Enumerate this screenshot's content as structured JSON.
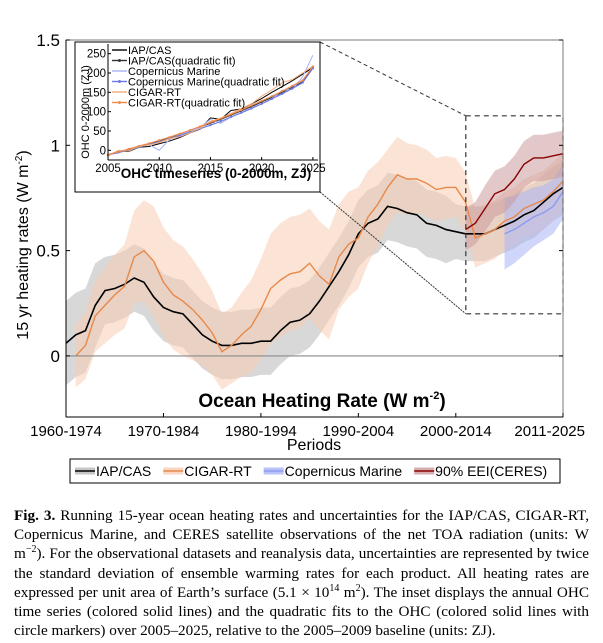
{
  "chart_data": [
    {
      "type": "line",
      "title": "Ocean Heating Rate (W m^-2)",
      "title_main": "Ocean Heating Rate (W m",
      "title_sup": "-2",
      "title_close": ")",
      "xlabel": "Periods",
      "ylabel_main": "15 yr heating rates (W m",
      "ylabel_sup": "-2",
      "ylabel_close": ")",
      "ylim": [
        -0.29,
        1.5
      ],
      "xlim": [
        1960,
        2011
      ],
      "yticks": [
        0,
        0.5,
        1,
        1.5
      ],
      "ytick_labels": [
        "0",
        "0.5",
        "1",
        "1.5"
      ],
      "xticks": [
        1960,
        1970,
        1980,
        1990,
        2000,
        2011
      ],
      "xtick_labels": [
        "1960-1974",
        "1970-1984",
        "1980-1994",
        "1990-2004",
        "2000-2014",
        "2011-2025"
      ],
      "zero_line": true,
      "legend_position": "bottom",
      "legend": [
        "IAP/CAS",
        "CIGAR-RT",
        "Copernicus Marine",
        "90% EEI(CERES)"
      ],
      "zoom_box": {
        "x_range": [
          2000,
          2011
        ],
        "y_range": [
          0.2,
          1.14
        ]
      },
      "series": [
        {
          "name": "IAP/CAS",
          "color": "#000000",
          "band_color": "#b8b8b8",
          "x": [
            1960,
            1961,
            1962,
            1963,
            1964,
            1965,
            1966,
            1967,
            1968,
            1969,
            1970,
            1971,
            1972,
            1973,
            1974,
            1975,
            1976,
            1977,
            1978,
            1979,
            1980,
            1981,
            1982,
            1983,
            1984,
            1985,
            1986,
            1987,
            1988,
            1989,
            1990,
            1991,
            1992,
            1993,
            1994,
            1995,
            1996,
            1997,
            1998,
            1999,
            2000,
            2001,
            2002,
            2003,
            2004,
            2005,
            2006,
            2007,
            2008,
            2009,
            2010,
            2011
          ],
          "y": [
            0.06,
            0.1,
            0.12,
            0.24,
            0.31,
            0.32,
            0.34,
            0.37,
            0.35,
            0.28,
            0.23,
            0.21,
            0.2,
            0.15,
            0.1,
            0.07,
            0.05,
            0.05,
            0.06,
            0.06,
            0.07,
            0.07,
            0.12,
            0.16,
            0.17,
            0.2,
            0.26,
            0.33,
            0.4,
            0.48,
            0.58,
            0.63,
            0.65,
            0.71,
            0.7,
            0.68,
            0.67,
            0.63,
            0.62,
            0.6,
            0.59,
            0.58,
            0.58,
            0.58,
            0.6,
            0.62,
            0.64,
            0.67,
            0.69,
            0.73,
            0.77,
            0.8
          ],
          "band": [
            0.2,
            0.2,
            0.2,
            0.2,
            0.16,
            0.16,
            0.16,
            0.16,
            0.16,
            0.16,
            0.16,
            0.16,
            0.16,
            0.16,
            0.16,
            0.16,
            0.16,
            0.16,
            0.16,
            0.16,
            0.16,
            0.16,
            0.16,
            0.16,
            0.16,
            0.16,
            0.16,
            0.16,
            0.16,
            0.16,
            0.16,
            0.16,
            0.16,
            0.16,
            0.16,
            0.16,
            0.16,
            0.16,
            0.16,
            0.16,
            0.13,
            0.13,
            0.13,
            0.13,
            0.13,
            0.13,
            0.13,
            0.13,
            0.13,
            0.13,
            0.13,
            0.13
          ]
        },
        {
          "name": "CIGAR-RT",
          "color": "#e8884a",
          "band_color": "#f7cdb5",
          "x": [
            1961,
            1962,
            1963,
            1964,
            1965,
            1966,
            1967,
            1968,
            1969,
            1970,
            1971,
            1972,
            1973,
            1974,
            1975,
            1976,
            1977,
            1978,
            1979,
            1980,
            1981,
            1982,
            1983,
            1984,
            1985,
            1986,
            1987,
            1988,
            1989,
            1990,
            1991,
            1992,
            1993,
            1994,
            1995,
            1996,
            1997,
            1998,
            1999,
            2000,
            2001,
            2002,
            2003,
            2004,
            2005,
            2006,
            2007,
            2008,
            2009,
            2010,
            2011
          ],
          "y": [
            0.0,
            0.05,
            0.19,
            0.24,
            0.29,
            0.33,
            0.47,
            0.5,
            0.45,
            0.35,
            0.29,
            0.26,
            0.22,
            0.17,
            0.11,
            0.02,
            0.05,
            0.1,
            0.14,
            0.22,
            0.32,
            0.36,
            0.39,
            0.4,
            0.44,
            0.38,
            0.34,
            0.47,
            0.53,
            0.56,
            0.66,
            0.72,
            0.8,
            0.86,
            0.84,
            0.84,
            0.82,
            0.79,
            0.8,
            0.8,
            0.73,
            0.56,
            0.58,
            0.6,
            0.64,
            0.66,
            0.7,
            0.72,
            0.74,
            0.78,
            0.83
          ],
          "band": [
            0.15,
            0.16,
            0.17,
            0.18,
            0.19,
            0.2,
            0.22,
            0.24,
            0.26,
            0.26,
            0.26,
            0.26,
            0.24,
            0.22,
            0.2,
            0.18,
            0.18,
            0.2,
            0.22,
            0.24,
            0.26,
            0.27,
            0.27,
            0.27,
            0.26,
            0.26,
            0.26,
            0.25,
            0.25,
            0.24,
            0.22,
            0.2,
            0.18,
            0.18,
            0.17,
            0.16,
            0.16,
            0.15,
            0.15,
            0.14,
            0.14,
            0.14,
            0.14,
            0.14,
            0.14,
            0.14,
            0.14,
            0.14,
            0.14,
            0.14,
            0.14
          ]
        },
        {
          "name": "Copernicus Marine",
          "color": "#8c9cf2",
          "band_color": "#a9b4f5",
          "x": [
            2005,
            2006,
            2007,
            2008,
            2009,
            2010,
            2011
          ],
          "y": [
            0.58,
            0.6,
            0.63,
            0.66,
            0.68,
            0.71,
            0.78
          ],
          "band": [
            0.17,
            0.16,
            0.15,
            0.14,
            0.13,
            0.13,
            0.13
          ]
        },
        {
          "name": "90% EEI(CERES)",
          "color": "#8b0000",
          "band_color": "#cc9a9e",
          "x": [
            2001,
            2002,
            2003,
            2004,
            2005,
            2006,
            2007,
            2008,
            2009,
            2010,
            2011
          ],
          "y": [
            0.6,
            0.63,
            0.7,
            0.77,
            0.79,
            0.84,
            0.91,
            0.94,
            0.94,
            0.95,
            0.96
          ],
          "band": [
            0.1,
            0.1,
            0.11,
            0.11,
            0.11,
            0.11,
            0.11,
            0.11,
            0.11,
            0.11,
            0.11
          ]
        }
      ]
    },
    {
      "type": "line",
      "title": "OHC timeseries (0-2000m, ZJ)",
      "ylabel": "OHC 0-2000m (ZJ)",
      "xlim": [
        2005,
        2025.5
      ],
      "ylim": [
        -25,
        275
      ],
      "xticks": [
        2005,
        2010,
        2015,
        2020,
        2025
      ],
      "xtick_labels": [
        "2005",
        "2010",
        "2015",
        "2020",
        "2025"
      ],
      "yticks": [
        0,
        50,
        100,
        150,
        200,
        250
      ],
      "ytick_labels": [
        "0",
        "50",
        "100",
        "150",
        "200",
        "250"
      ],
      "legend_position": "top-left",
      "legend": [
        "IAP/CAS",
        "IAP/CAS(quadratic fit)",
        "Copernicus Marine",
        "Copernicus Marine(quadratic fit)",
        "CIGAR-RT",
        "CIGAR-RT(quadratic fit)"
      ],
      "series": [
        {
          "name": "IAP/CAS",
          "color": "#000000",
          "style": "line",
          "x": [
            2005,
            2006,
            2007,
            2008,
            2009,
            2010,
            2011,
            2012,
            2013,
            2014,
            2015,
            2016,
            2017,
            2018,
            2019,
            2020,
            2021,
            2022,
            2023,
            2024,
            2025
          ],
          "y": [
            -13,
            -2,
            -3,
            8,
            10,
            17,
            24,
            33,
            45,
            55,
            84,
            80,
            103,
            107,
            120,
            134,
            150,
            165,
            180,
            197,
            214
          ]
        },
        {
          "name": "IAP/CAS(quadratic fit)",
          "color": "#333333",
          "style": "marker",
          "x": [
            2005,
            2006,
            2007,
            2008,
            2009,
            2010,
            2011,
            2012,
            2013,
            2014,
            2015,
            2016,
            2017,
            2018,
            2019,
            2020,
            2021,
            2022,
            2023,
            2024,
            2025
          ],
          "y": [
            -12,
            -5,
            3,
            10,
            17,
            25,
            33,
            42,
            51,
            60,
            70,
            80,
            91,
            102,
            113,
            125,
            137,
            150,
            163,
            177,
            215
          ]
        },
        {
          "name": "Copernicus Marine",
          "color": "#a8b3f4",
          "style": "line",
          "x": [
            2005,
            2006,
            2007,
            2008,
            2009,
            2010,
            2011,
            2012,
            2013,
            2014,
            2015,
            2016,
            2017,
            2018,
            2019,
            2020,
            2021,
            2022,
            2023,
            2024,
            2025
          ],
          "y": [
            -10,
            -5,
            -1,
            9,
            15,
            0,
            28,
            40,
            50,
            60,
            80,
            70,
            86,
            98,
            110,
            120,
            134,
            155,
            158,
            190,
            246
          ]
        },
        {
          "name": "Copernicus Marine(quadratic fit)",
          "color": "#6a7ae8",
          "style": "marker",
          "x": [
            2005,
            2006,
            2007,
            2008,
            2009,
            2010,
            2011,
            2012,
            2013,
            2014,
            2015,
            2016,
            2017,
            2018,
            2019,
            2020,
            2021,
            2022,
            2023,
            2024,
            2025
          ],
          "y": [
            -12,
            -6,
            1,
            8,
            15,
            22,
            30,
            38,
            47,
            56,
            65,
            75,
            86,
            97,
            108,
            120,
            133,
            146,
            160,
            175,
            212
          ]
        },
        {
          "name": "CIGAR-RT",
          "color": "#f4a97a",
          "style": "line",
          "x": [
            2005,
            2006,
            2007,
            2008,
            2009,
            2010,
            2011,
            2012,
            2013,
            2014,
            2015,
            2016,
            2017,
            2018,
            2019,
            2020,
            2021,
            2022,
            2023,
            2024,
            2025
          ],
          "y": [
            -15,
            0,
            -2,
            10,
            14,
            20,
            30,
            35,
            45,
            57,
            75,
            83,
            95,
            108,
            120,
            140,
            156,
            175,
            183,
            200,
            218
          ]
        },
        {
          "name": "CIGAR-RT(quadratic fit)",
          "color": "#f08a4b",
          "style": "marker",
          "x": [
            2005,
            2006,
            2007,
            2008,
            2009,
            2010,
            2011,
            2012,
            2013,
            2014,
            2015,
            2016,
            2017,
            2018,
            2019,
            2020,
            2021,
            2022,
            2023,
            2024,
            2025
          ],
          "y": [
            -11,
            -4,
            3,
            11,
            18,
            26,
            34,
            43,
            52,
            62,
            72,
            82,
            93,
            104,
            116,
            128,
            140,
            153,
            167,
            181,
            217
          ]
        }
      ]
    }
  ],
  "caption": {
    "label": "Fig. 3.",
    "text_1": " Running 15-year ocean heating rates and uncertainties for the IAP/CAS, CIGAR-RT, Copernicus Marine, and CERES satellite observations of the net TOA radiation (units: W m",
    "sup_1": "−2",
    "text_2": "). For the observational datasets and reanalysis data, uncertainties are represented by twice the standard deviation of ensemble warming rates for each product. All heating rates are expressed per unit area of Earth’s surface (5.1 × 10",
    "sup_2": "14",
    "text_3": " m",
    "sup_3": "2",
    "text_4": "). The inset displays the annual OHC time series (colored solid lines) and the quadratic fits to the OHC (colored solid lines with circle markers) over 2005–2025, relative to the 2005–2009 baseline (units: ZJ)."
  }
}
